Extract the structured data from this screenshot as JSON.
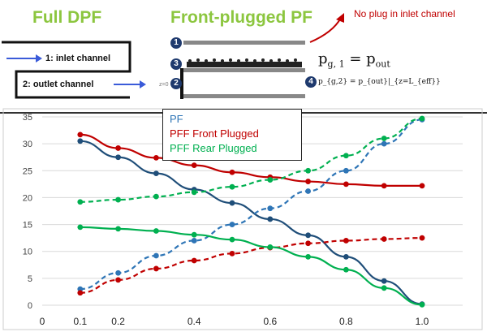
{
  "diagram": {
    "title_full": "Full DPF",
    "title_front": "Front-plugged PF",
    "inlet_label": "1: inlet channel",
    "outlet_label": "2: outlet channel",
    "annotation": "No plug in inlet channel",
    "badges": [
      "1",
      "2",
      "3",
      "4"
    ],
    "eq1_left": "p",
    "eq1_sub": "g, 1",
    "eq1_eq": "=",
    "eq1_right": "p",
    "eq1_right_sub": "out",
    "eq2": "p_{g,2} = p_{out}|_{z=L_{eff}}",
    "z0": "z=0",
    "colors": {
      "title": "#8cc63f",
      "annotation": "#c00000",
      "arrow": "#3a5bd9"
    }
  },
  "chart_data": {
    "type": "line",
    "x": [
      0.1,
      0.2,
      0.3,
      0.4,
      0.5,
      0.6,
      0.7,
      0.8,
      0.9,
      1.0
    ],
    "xlim": [
      0,
      1.0
    ],
    "ylim": [
      0,
      35
    ],
    "xticks": [
      "0",
      "0.1",
      "0.2",
      "0.4",
      "0.6",
      "0.8",
      "1.0"
    ],
    "xtick_values": [
      0,
      0.1,
      0.2,
      0.4,
      0.6,
      0.8,
      1.0
    ],
    "yticks": [
      0,
      5,
      10,
      15,
      20,
      25,
      30,
      35
    ],
    "grid": true,
    "legend_placement": "top-left",
    "legend": [
      {
        "label": "PF",
        "color": "#2e75b6"
      },
      {
        "label": "PFF Front Plugged",
        "color": "#c00000"
      },
      {
        "label": "PFF Rear Plugged",
        "color": "#00b050"
      }
    ],
    "series": [
      {
        "color": "#1f4e79",
        "dash": false,
        "values": [
          30.5,
          27.5,
          24.5,
          21.5,
          19.0,
          16.0,
          13.0,
          9.0,
          4.5,
          0.2
        ]
      },
      {
        "color": "#2e75b6",
        "dash": true,
        "values": [
          3.0,
          6.0,
          9.2,
          12.0,
          15.0,
          18.0,
          21.2,
          25.0,
          30.0,
          34.5
        ]
      },
      {
        "color": "#c00000",
        "dash": false,
        "values": [
          31.7,
          29.2,
          27.4,
          26.0,
          24.7,
          23.8,
          23.0,
          22.5,
          22.2,
          22.2
        ]
      },
      {
        "color": "#c00000",
        "dash": true,
        "values": [
          2.3,
          4.7,
          6.8,
          8.3,
          9.6,
          10.7,
          11.5,
          12.0,
          12.3,
          12.5
        ]
      },
      {
        "color": "#00b050",
        "dash": false,
        "values": [
          14.5,
          14.2,
          13.8,
          13.1,
          12.2,
          10.8,
          9.0,
          6.6,
          3.2,
          0.1
        ]
      },
      {
        "color": "#00b050",
        "dash": true,
        "values": [
          19.2,
          19.6,
          20.2,
          21.0,
          22.0,
          23.3,
          25.0,
          27.8,
          31.0,
          34.7
        ]
      }
    ]
  }
}
